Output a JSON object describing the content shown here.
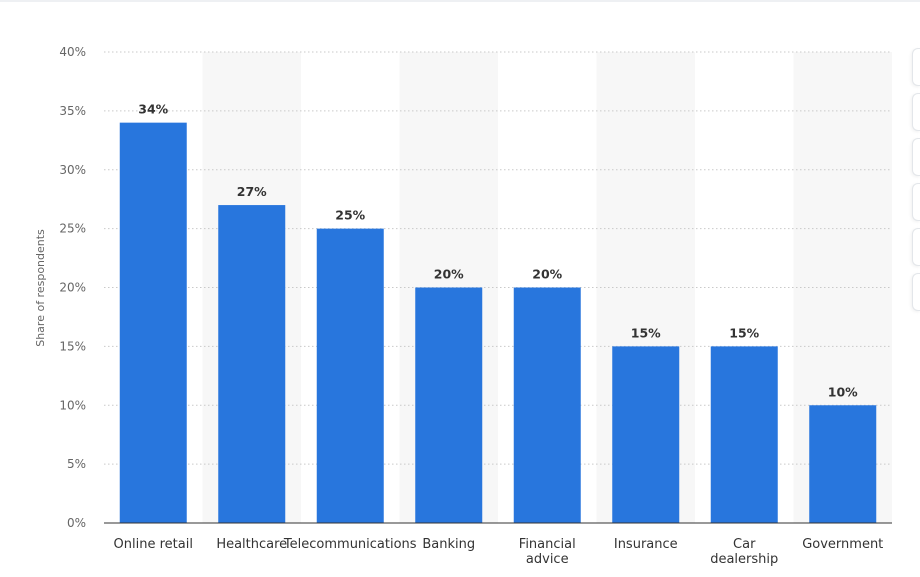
{
  "chart_data": {
    "type": "bar",
    "title": "",
    "xlabel": "",
    "ylabel": "Share of respondents",
    "categories": [
      "Online retail",
      "Healthcare",
      "Telecommunications",
      "Banking",
      "Financial advice",
      "Insurance",
      "Car dealership",
      "Government"
    ],
    "category_lines": [
      [
        "Online retail"
      ],
      [
        "Healthcare"
      ],
      [
        "Telecommunications"
      ],
      [
        "Banking"
      ],
      [
        "Financial",
        "advice"
      ],
      [
        "Insurance"
      ],
      [
        "Car",
        "dealership"
      ],
      [
        "Government"
      ]
    ],
    "values": [
      34,
      27,
      25,
      20,
      20,
      15,
      15,
      10
    ],
    "value_labels": [
      "34%",
      "27%",
      "25%",
      "20%",
      "20%",
      "15%",
      "15%",
      "10%"
    ],
    "ylim": [
      0,
      40
    ],
    "yticks": [
      0,
      5,
      10,
      15,
      20,
      25,
      30,
      35,
      40
    ],
    "ytick_labels": [
      "0%",
      "5%",
      "10%",
      "15%",
      "20%",
      "25%",
      "30%",
      "35%",
      "40%"
    ],
    "grid": true,
    "bar_color": "#2876dd",
    "band_color": "#f7f7f7"
  }
}
